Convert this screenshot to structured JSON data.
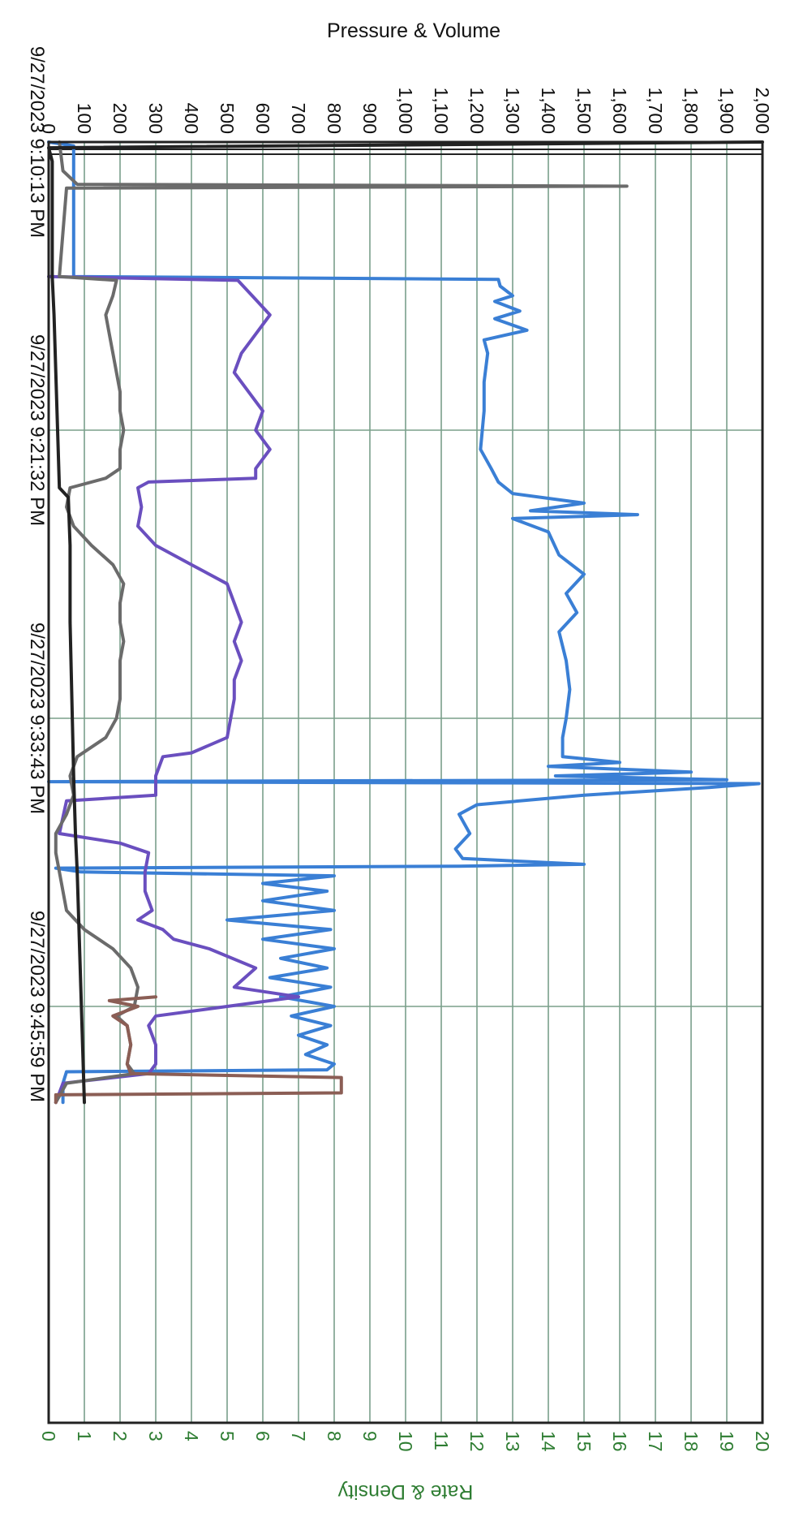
{
  "chart_data": {
    "type": "line",
    "orientation": "rotated-90",
    "grid": true,
    "time_axis": {
      "ticks": [
        "9/27/2023 9:10:13 PM",
        "9/27/2023 9:21:32 PM",
        "9/27/2023 9:33:43 PM",
        "9/27/2023 9:45:59 PM"
      ],
      "range_minutes": [
        0,
        45
      ]
    },
    "primary_axis": {
      "title": "Pressure & Volume",
      "ticks": [
        "0",
        "100",
        "200",
        "300",
        "400",
        "500",
        "600",
        "700",
        "800",
        "900",
        "1,000",
        "1,100",
        "1,200",
        "1,300",
        "1,400",
        "1,500",
        "1,600",
        "1,700",
        "1,800",
        "1,900",
        "2,000"
      ],
      "range": [
        0,
        2000
      ]
    },
    "secondary_axis": {
      "title": "Rate & Density",
      "ticks": [
        "0",
        "1",
        "2",
        "3",
        "4",
        "5",
        "6",
        "7",
        "8",
        "9",
        "10",
        "11",
        "12",
        "13",
        "14",
        "15",
        "16",
        "17",
        "18",
        "19",
        "20"
      ],
      "range": [
        0,
        20
      ]
    },
    "series": [
      {
        "color": "#3a7fd5",
        "axis": "primary",
        "points": [
          [
            0,
            0
          ],
          [
            0.2,
            70
          ],
          [
            2,
            70
          ],
          [
            7,
            70
          ],
          [
            7.15,
            1260
          ],
          [
            7.5,
            1265
          ],
          [
            8,
            1300
          ],
          [
            8.3,
            1250
          ],
          [
            8.8,
            1320
          ],
          [
            9.2,
            1250
          ],
          [
            9.8,
            1340
          ],
          [
            10.3,
            1220
          ],
          [
            11,
            1230
          ],
          [
            12.5,
            1220
          ],
          [
            14,
            1220
          ],
          [
            16,
            1210
          ],
          [
            17,
            1240
          ],
          [
            17.7,
            1260
          ],
          [
            18.3,
            1300
          ],
          [
            18.8,
            1500
          ],
          [
            19.2,
            1350
          ],
          [
            19.4,
            1650
          ],
          [
            19.6,
            1300
          ],
          [
            20.3,
            1400
          ],
          [
            21.5,
            1430
          ],
          [
            22.5,
            1500
          ],
          [
            23.5,
            1450
          ],
          [
            24.5,
            1480
          ],
          [
            25.5,
            1430
          ],
          [
            27,
            1450
          ],
          [
            28.5,
            1460
          ],
          [
            30,
            1450
          ],
          [
            31,
            1440
          ],
          [
            32,
            1440
          ],
          [
            32.3,
            1600
          ],
          [
            32.5,
            1400
          ],
          [
            32.8,
            1800
          ],
          [
            33,
            1420
          ],
          [
            33.2,
            1900
          ],
          [
            33.3,
            0
          ],
          [
            33.4,
            1990
          ],
          [
            33.6,
            1850
          ],
          [
            34,
            1500
          ],
          [
            34.5,
            1200
          ],
          [
            35,
            1150
          ],
          [
            36,
            1180
          ],
          [
            36.8,
            1140
          ],
          [
            37.3,
            1160
          ],
          [
            37.6,
            1500
          ],
          [
            37.7,
            1150
          ],
          [
            37.8,
            20
          ],
          [
            38,
            90
          ],
          [
            38.2,
            800
          ],
          [
            38.6,
            600
          ],
          [
            39,
            780
          ],
          [
            39.5,
            600
          ],
          [
            40,
            800
          ],
          [
            40.5,
            500
          ],
          [
            41,
            790
          ],
          [
            41.5,
            600
          ],
          [
            42,
            800
          ],
          [
            42.5,
            650
          ],
          [
            43,
            780
          ],
          [
            43.5,
            620
          ],
          [
            44,
            790
          ],
          [
            44.5,
            650
          ],
          [
            45,
            800
          ],
          [
            45.5,
            680
          ],
          [
            46,
            790
          ],
          [
            46.5,
            700
          ],
          [
            47,
            780
          ],
          [
            47.5,
            720
          ],
          [
            48,
            800
          ],
          [
            48.3,
            780
          ],
          [
            48.4,
            50
          ],
          [
            49,
            40
          ],
          [
            50,
            40
          ]
        ]
      },
      {
        "color": "#6a4fbf",
        "axis": "primary",
        "points": [
          [
            7,
            0
          ],
          [
            7.2,
            530
          ],
          [
            8,
            570
          ],
          [
            9,
            620
          ],
          [
            10,
            580
          ],
          [
            11,
            540
          ],
          [
            12,
            520
          ],
          [
            13,
            560
          ],
          [
            14,
            600
          ],
          [
            15,
            580
          ],
          [
            16,
            620
          ],
          [
            17,
            580
          ],
          [
            17.5,
            580
          ],
          [
            17.7,
            280
          ],
          [
            18,
            250
          ],
          [
            19,
            260
          ],
          [
            20,
            250
          ],
          [
            21,
            300
          ],
          [
            22,
            400
          ],
          [
            23,
            500
          ],
          [
            24,
            520
          ],
          [
            25,
            540
          ],
          [
            26,
            520
          ],
          [
            27,
            540
          ],
          [
            28,
            520
          ],
          [
            29,
            520
          ],
          [
            30,
            510
          ],
          [
            31,
            500
          ],
          [
            31.8,
            400
          ],
          [
            32,
            320
          ],
          [
            33,
            300
          ],
          [
            34,
            300
          ],
          [
            34.3,
            50
          ],
          [
            36,
            30
          ],
          [
            36.5,
            200
          ],
          [
            37,
            280
          ],
          [
            38,
            270
          ],
          [
            39,
            270
          ],
          [
            40,
            290
          ],
          [
            40.5,
            250
          ],
          [
            41,
            320
          ],
          [
            41.5,
            350
          ],
          [
            42,
            450
          ],
          [
            43,
            580
          ],
          [
            44,
            520
          ],
          [
            44.5,
            700
          ],
          [
            45,
            500
          ],
          [
            45.5,
            300
          ],
          [
            46,
            280
          ],
          [
            47,
            300
          ],
          [
            48,
            300
          ],
          [
            48.5,
            280
          ],
          [
            49,
            40
          ],
          [
            50,
            20
          ]
        ]
      },
      {
        "color": "#6b6b6b",
        "axis": "secondary",
        "points": [
          [
            0,
            0.3
          ],
          [
            1.5,
            0.4
          ],
          [
            2.2,
            0.8
          ],
          [
            2.3,
            16.2
          ],
          [
            2.4,
            0.5
          ],
          [
            7,
            0.3
          ],
          [
            7.2,
            1.9
          ],
          [
            8,
            1.8
          ],
          [
            9,
            1.6
          ],
          [
            10,
            1.7
          ],
          [
            11,
            1.8
          ],
          [
            12,
            1.9
          ],
          [
            13,
            2
          ],
          [
            14,
            2
          ],
          [
            15,
            2.1
          ],
          [
            16,
            2
          ],
          [
            17,
            2
          ],
          [
            17.5,
            1.6
          ],
          [
            18,
            0.6
          ],
          [
            19,
            0.5
          ],
          [
            20,
            0.7
          ],
          [
            21,
            1.2
          ],
          [
            22,
            1.8
          ],
          [
            23,
            2.1
          ],
          [
            24,
            2
          ],
          [
            25,
            2
          ],
          [
            26,
            2.1
          ],
          [
            27,
            2
          ],
          [
            28,
            2
          ],
          [
            29,
            2
          ],
          [
            30,
            1.9
          ],
          [
            31,
            1.6
          ],
          [
            32,
            0.8
          ],
          [
            33,
            0.6
          ],
          [
            34,
            0.7
          ],
          [
            35,
            0.5
          ],
          [
            36,
            0.2
          ],
          [
            37,
            0.2
          ],
          [
            38,
            0.3
          ],
          [
            39,
            0.4
          ],
          [
            40,
            0.5
          ],
          [
            41,
            1
          ],
          [
            42,
            1.8
          ],
          [
            43,
            2.3
          ],
          [
            44,
            2.5
          ],
          [
            45,
            2.4
          ],
          [
            45.5,
            1.9
          ],
          [
            46,
            2.2
          ],
          [
            47,
            2.3
          ],
          [
            48,
            2.2
          ],
          [
            48.5,
            2.4
          ],
          [
            49,
            0.5
          ],
          [
            50,
            0.2
          ]
        ]
      },
      {
        "color": "#8b5e55",
        "axis": "secondary",
        "points": [
          [
            44.5,
            3
          ],
          [
            44.7,
            1.7
          ],
          [
            45,
            2.5
          ],
          [
            45.5,
            1.8
          ],
          [
            46,
            2.2
          ],
          [
            47,
            2.3
          ],
          [
            48,
            2.2
          ],
          [
            48.5,
            2.3
          ],
          [
            48.7,
            8.2
          ],
          [
            49.5,
            8.2
          ],
          [
            49.6,
            0.2
          ],
          [
            50,
            0.2
          ]
        ]
      },
      {
        "color": "#222222",
        "axis": "secondary",
        "points": [
          [
            0,
            20
          ],
          [
            0.3,
            0
          ],
          [
            1,
            0.1
          ],
          [
            7,
            0.1
          ],
          [
            9,
            0.15
          ],
          [
            12,
            0.2
          ],
          [
            15,
            0.25
          ],
          [
            18,
            0.3
          ],
          [
            18.5,
            0.55
          ],
          [
            21,
            0.6
          ],
          [
            25,
            0.6
          ],
          [
            29,
            0.65
          ],
          [
            33,
            0.7
          ],
          [
            36,
            0.75
          ],
          [
            38,
            0.8
          ],
          [
            41,
            0.85
          ],
          [
            44,
            0.9
          ],
          [
            47,
            0.95
          ],
          [
            50,
            1
          ]
        ]
      }
    ]
  }
}
